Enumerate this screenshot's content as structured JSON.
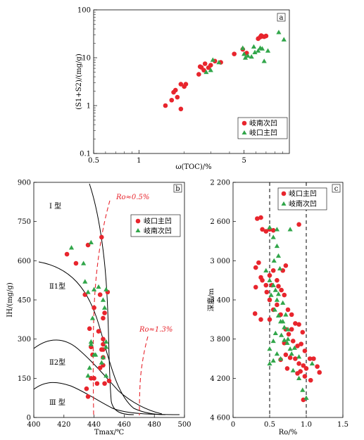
{
  "chart_data": [
    {
      "type": "scatter",
      "panel": "a",
      "xscale": "log",
      "yscale": "log",
      "xlim": [
        0.5,
        10
      ],
      "ylim": [
        0.1,
        100
      ],
      "xticks": [
        "0.5",
        "1",
        "5"
      ],
      "yticks": [
        "0.1",
        "1",
        "10",
        "100"
      ],
      "xlabel": "ω(TOC)/%",
      "ylabel": "(S1+S2)/(mg/g)",
      "legend": "bottom-right",
      "series": [
        {
          "name": "岐南次凹",
          "marker": "circle",
          "color": "#e8252d",
          "points": [
            [
              1.5,
              1.0
            ],
            [
              1.65,
              1.3
            ],
            [
              1.7,
              1.9
            ],
            [
              1.75,
              2.1
            ],
            [
              1.8,
              1.5
            ],
            [
              1.9,
              2.8
            ],
            [
              1.9,
              0.85
            ],
            [
              2.0,
              2.5
            ],
            [
              2.05,
              2.8
            ],
            [
              2.5,
              4.5
            ],
            [
              2.55,
              6.5
            ],
            [
              2.6,
              6.3
            ],
            [
              2.7,
              5.5
            ],
            [
              2.75,
              7.5
            ],
            [
              2.9,
              6.2
            ],
            [
              3.0,
              7.0
            ],
            [
              3.2,
              8.5
            ],
            [
              3.5,
              8.0
            ],
            [
              4.3,
              12.0
            ],
            [
              4.9,
              15.0
            ],
            [
              5.2,
              12.5
            ],
            [
              6.4,
              27.0
            ],
            [
              6.5,
              29.0
            ],
            [
              6.6,
              28.0
            ],
            [
              6.8,
              27.5
            ],
            [
              7.0,
              28.5
            ],
            [
              6.2,
              25.0
            ]
          ]
        },
        {
          "name": "岐口主凹",
          "marker": "triangle",
          "color": "#31a64a",
          "points": [
            [
              2.8,
              5.0
            ],
            [
              3.0,
              5.5
            ],
            [
              3.1,
              9.0
            ],
            [
              3.4,
              8.0
            ],
            [
              4.9,
              16.0
            ],
            [
              5.0,
              12.0
            ],
            [
              5.1,
              10.0
            ],
            [
              5.3,
              11.0
            ],
            [
              5.6,
              10.5
            ],
            [
              5.9,
              13.0
            ],
            [
              6.2,
              14.0
            ],
            [
              6.4,
              16.0
            ],
            [
              6.6,
              15.5
            ],
            [
              6.8,
              8.5
            ],
            [
              7.2,
              14.0
            ],
            [
              8.5,
              34.0
            ],
            [
              9.2,
              24.0
            ],
            [
              5.8,
              17.0
            ]
          ]
        }
      ]
    },
    {
      "type": "scatter",
      "panel": "b",
      "xlim": [
        400,
        500
      ],
      "ylim": [
        0,
        900
      ],
      "xticks": [
        "400",
        "420",
        "440",
        "460",
        "480",
        "500"
      ],
      "yticks": [
        "0",
        "150",
        "300",
        "450",
        "600",
        "750",
        "900"
      ],
      "xlabel": "Tmax/℃",
      "ylabel": "IH/(mg/g)",
      "legend": "top-right",
      "region_labels": [
        "Ⅰ 型",
        "Ⅱ1型",
        "Ⅱ2型",
        "Ⅲ 型"
      ],
      "ro_labels": [
        "Ro≈0.5%",
        "Ro≈1.3%"
      ],
      "series": [
        {
          "name": "岐口主凹",
          "marker": "circle",
          "color": "#e8252d",
          "points": [
            [
              422,
              625
            ],
            [
              428,
              590
            ],
            [
              436,
              660
            ],
            [
              445,
              690
            ],
            [
              444,
              470
            ],
            [
              449,
              480
            ],
            [
              447,
              400
            ],
            [
              446,
              380
            ],
            [
              446,
              300
            ],
            [
              446,
              280
            ],
            [
              446,
              260
            ],
            [
              446,
              230
            ],
            [
              446,
              200
            ],
            [
              444,
              190
            ],
            [
              440,
              150
            ],
            [
              442,
              130
            ],
            [
              447,
              130
            ],
            [
              450,
              140
            ],
            [
              437,
              340
            ],
            [
              436,
              80
            ],
            [
              438,
              150
            ],
            [
              439,
              240
            ],
            [
              438,
              270
            ],
            [
              443,
              330
            ],
            [
              440,
              420
            ],
            [
              445,
              260
            ],
            [
              434,
              470
            ],
            [
              435,
              110
            ]
          ]
        },
        {
          "name": "岐南次凹",
          "marker": "triangle",
          "color": "#31a64a",
          "points": [
            [
              425,
              650
            ],
            [
              433,
              590
            ],
            [
              438,
              670
            ],
            [
              434,
              520
            ],
            [
              436,
              480
            ],
            [
              440,
              490
            ],
            [
              443,
              500
            ],
            [
              446,
              450
            ],
            [
              447,
              420
            ],
            [
              448,
              490
            ],
            [
              439,
              380
            ],
            [
              438,
              290
            ],
            [
              438,
              280
            ],
            [
              440,
              240
            ],
            [
              441,
              240
            ],
            [
              448,
              290
            ],
            [
              448,
              270
            ],
            [
              446,
              230
            ],
            [
              445,
              210
            ],
            [
              448,
              160
            ],
            [
              436,
              160
            ],
            [
              437,
              190
            ]
          ]
        }
      ]
    },
    {
      "type": "scatter",
      "panel": "c",
      "xlim": [
        0,
        1.5
      ],
      "ylim": [
        2200,
        4600
      ],
      "xticks": [
        "0",
        "0.5",
        "1.0",
        "1.5"
      ],
      "yticks": [
        "2 200",
        "2 600",
        "3 000",
        "3 400",
        "3 800",
        "4 200",
        "4 600"
      ],
      "xlabel": "Ro/%",
      "ylabel": "深度/m",
      "legend": "top-right",
      "series": [
        {
          "name": "岐口主凹",
          "marker": "circle",
          "color": "#e8252d",
          "points": [
            [
              0.33,
              2570
            ],
            [
              0.38,
              2560
            ],
            [
              0.4,
              2680
            ],
            [
              0.45,
              2700
            ],
            [
              0.5,
              2680
            ],
            [
              0.55,
              2690
            ],
            [
              0.9,
              2630
            ],
            [
              0.31,
              3070
            ],
            [
              0.35,
              3020
            ],
            [
              0.38,
              3170
            ],
            [
              0.31,
              3270
            ],
            [
              0.4,
              3200
            ],
            [
              0.45,
              3250
            ],
            [
              0.5,
              3150
            ],
            [
              0.55,
              3100
            ],
            [
              0.6,
              3200
            ],
            [
              0.46,
              3320
            ],
            [
              0.5,
              3400
            ],
            [
              0.53,
              3250
            ],
            [
              0.62,
              3260
            ],
            [
              0.66,
              3300
            ],
            [
              0.7,
              3350
            ],
            [
              0.72,
              3050
            ],
            [
              0.68,
              3100
            ],
            [
              0.3,
              3540
            ],
            [
              0.38,
              3600
            ],
            [
              0.5,
              3600
            ],
            [
              0.55,
              3500
            ],
            [
              0.6,
              3450
            ],
            [
              0.65,
              3550
            ],
            [
              0.75,
              3500
            ],
            [
              0.8,
              3550
            ],
            [
              0.72,
              3700
            ],
            [
              0.76,
              3750
            ],
            [
              0.8,
              3700
            ],
            [
              0.85,
              3640
            ],
            [
              0.9,
              3650
            ],
            [
              0.95,
              3730
            ],
            [
              0.82,
              3820
            ],
            [
              0.88,
              3870
            ],
            [
              0.93,
              3850
            ],
            [
              0.98,
              3920
            ],
            [
              0.72,
              3960
            ],
            [
              0.78,
              3990
            ],
            [
              0.85,
              4000
            ],
            [
              0.9,
              4050
            ],
            [
              0.96,
              4070
            ],
            [
              1.0,
              4100
            ],
            [
              1.05,
              4000
            ],
            [
              1.1,
              4000
            ],
            [
              1.15,
              4080
            ],
            [
              1.18,
              4140
            ],
            [
              0.88,
              4150
            ],
            [
              0.92,
              4130
            ],
            [
              0.98,
              4180
            ],
            [
              1.06,
              4220
            ],
            [
              0.96,
              4420
            ],
            [
              0.74,
              4100
            ],
            [
              0.65,
              4010
            ],
            [
              0.7,
              3840
            ]
          ]
        },
        {
          "name": "岐南次凹",
          "marker": "triangle",
          "color": "#31a64a",
          "points": [
            [
              0.5,
              2660
            ],
            [
              0.6,
              2680
            ],
            [
              0.78,
              2680
            ],
            [
              0.55,
              2760
            ],
            [
              0.6,
              2850
            ],
            [
              0.62,
              2950
            ],
            [
              0.56,
              3000
            ],
            [
              0.64,
              3080
            ],
            [
              0.45,
              3100
            ],
            [
              0.5,
              3200
            ],
            [
              0.55,
              3250
            ],
            [
              0.58,
              3300
            ],
            [
              0.52,
              3350
            ],
            [
              0.62,
              3340
            ],
            [
              0.68,
              3430
            ],
            [
              0.6,
              3400
            ],
            [
              0.57,
              3500
            ],
            [
              0.62,
              3560
            ],
            [
              0.68,
              3620
            ],
            [
              0.7,
              3680
            ],
            [
              0.66,
              3760
            ],
            [
              0.7,
              3810
            ],
            [
              0.74,
              3840
            ],
            [
              0.78,
              3900
            ],
            [
              0.8,
              3950
            ],
            [
              0.84,
              3890
            ],
            [
              0.75,
              3800
            ],
            [
              0.5,
              3900
            ],
            [
              0.6,
              3950
            ],
            [
              0.5,
              4050
            ],
            [
              0.55,
              4020
            ],
            [
              0.65,
              3620
            ],
            [
              0.72,
              3550
            ],
            [
              0.58,
              3740
            ],
            [
              0.55,
              3820
            ],
            [
              0.65,
              4000
            ],
            [
              0.82,
              4120
            ],
            [
              0.9,
              4200
            ],
            [
              0.95,
              4320
            ],
            [
              1.0,
              4400
            ],
            [
              1.08,
              4050
            ],
            [
              0.9,
              3980
            ],
            [
              0.75,
              3700
            ]
          ]
        }
      ]
    }
  ],
  "panel_letters": {
    "a": "a",
    "b": "b",
    "c": "c"
  }
}
